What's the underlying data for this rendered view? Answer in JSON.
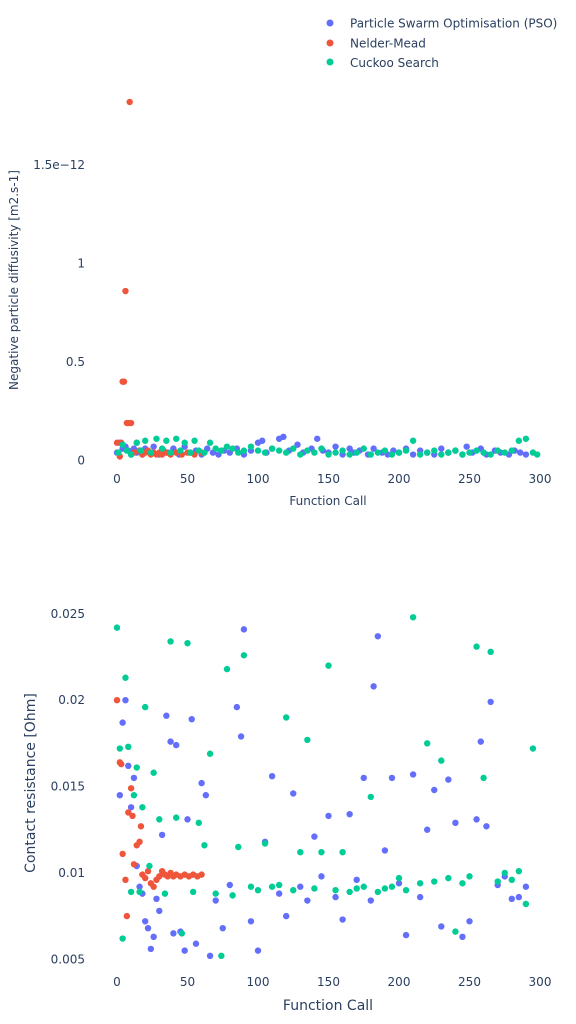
{
  "legend": {
    "placement": "top-right",
    "items": [
      {
        "label": "Particle Swarm Optimisation (PSO)",
        "color": "#636efa"
      },
      {
        "label": "Nelder-Mead",
        "color": "#ef553b"
      },
      {
        "label": "Cuckoo Search",
        "color": "#00cc96"
      }
    ]
  },
  "chart_data": [
    {
      "type": "scatter",
      "xlabel": "Function Call",
      "ylabel": "Negative particle diffusivity [m2.s-1]",
      "xlim": [
        -10,
        305
      ],
      "ylim": [
        -1.5e-13,
        1.83e-12
      ],
      "grid": false,
      "xticks": [
        0,
        50,
        100,
        150,
        200,
        250,
        300
      ],
      "yticks": [
        {
          "value": 0,
          "label": "0"
        },
        {
          "value": 5e-13,
          "label": "0.5"
        },
        {
          "value": 1e-12,
          "label": "1"
        },
        {
          "value": 1.5e-12,
          "label": "1.5e−12"
        }
      ],
      "series": [
        {
          "name": "Particle Swarm Optimisation (PSO)",
          "color": "#636efa",
          "x": [
            0,
            2,
            4,
            6,
            8,
            10,
            12,
            14,
            16,
            18,
            20,
            23,
            26,
            30,
            33,
            36,
            40,
            44,
            48,
            52,
            56,
            60,
            64,
            68,
            72,
            76,
            80,
            85,
            90,
            95,
            100,
            103,
            106,
            110,
            115,
            118,
            122,
            128,
            132,
            138,
            142,
            146,
            150,
            155,
            160,
            165,
            168,
            172,
            178,
            182,
            188,
            192,
            196,
            200,
            205,
            210,
            215,
            220,
            225,
            230,
            235,
            240,
            245,
            248,
            252,
            258,
            262,
            268,
            272,
            278,
            282,
            286,
            290
          ],
          "y": [
            4e-14,
            9e-14,
            6e-14,
            7e-14,
            5e-14,
            3e-14,
            6e-14,
            4e-14,
            5e-14,
            3e-14,
            6e-14,
            4e-14,
            7e-14,
            3e-14,
            5e-14,
            4e-14,
            6e-14,
            3e-14,
            7e-14,
            4e-14,
            5e-14,
            3e-14,
            6e-14,
            4e-14,
            3e-14,
            5e-14,
            4e-14,
            6e-14,
            3e-14,
            5e-14,
            9e-14,
            1e-13,
            4e-14,
            6e-14,
            1.1e-13,
            1.2e-13,
            5e-14,
            8e-14,
            4e-14,
            6e-14,
            1.1e-13,
            5e-14,
            4e-14,
            7e-14,
            3e-14,
            6e-14,
            4e-14,
            5e-14,
            3e-14,
            6e-14,
            4e-14,
            3e-14,
            5e-14,
            4e-14,
            6e-14,
            3e-14,
            5e-14,
            4e-14,
            3e-14,
            6e-14,
            4e-14,
            5e-14,
            3e-14,
            7e-14,
            4e-14,
            6e-14,
            3e-14,
            5e-14,
            4e-14,
            3e-14,
            5e-14,
            4e-14,
            3e-14
          ]
        },
        {
          "name": "Nelder-Mead",
          "color": "#ef553b",
          "x": [
            0,
            2,
            3,
            4,
            5,
            6,
            7,
            8,
            9,
            10,
            12,
            14,
            16,
            18,
            20,
            22,
            24,
            26,
            28,
            30,
            32,
            35,
            38,
            42,
            46,
            50,
            55,
            60
          ],
          "y": [
            9e-14,
            2e-14,
            9e-14,
            4e-13,
            4e-13,
            8.6e-13,
            1.9e-13,
            1.9e-13,
            1.82e-12,
            1.9e-13,
            4e-14,
            9e-14,
            5e-14,
            3e-14,
            4e-14,
            5e-14,
            3e-14,
            4e-14,
            3e-14,
            4e-14,
            3e-14,
            4e-14,
            3e-14,
            4e-14,
            3e-14,
            4e-14,
            3e-14,
            4e-14
          ]
        },
        {
          "name": "Cuckoo Search",
          "color": "#00cc96",
          "x": [
            1,
            4,
            7,
            10,
            14,
            17,
            20,
            24,
            28,
            32,
            35,
            38,
            42,
            45,
            48,
            52,
            55,
            58,
            62,
            66,
            70,
            74,
            78,
            82,
            86,
            90,
            95,
            100,
            105,
            110,
            115,
            120,
            125,
            130,
            135,
            140,
            145,
            150,
            155,
            160,
            165,
            170,
            175,
            180,
            185,
            190,
            195,
            200,
            205,
            210,
            215,
            220,
            225,
            230,
            235,
            240,
            245,
            250,
            255,
            260,
            265,
            270,
            275,
            280,
            285,
            290,
            295,
            298
          ],
          "y": [
            4e-14,
            8e-14,
            5e-14,
            3e-14,
            9e-14,
            5e-14,
            1e-13,
            4e-14,
            1.1e-13,
            6e-14,
            1e-13,
            4e-14,
            1.1e-13,
            5e-14,
            9e-14,
            4e-14,
            1e-13,
            5e-14,
            4e-14,
            9e-14,
            6e-14,
            5e-14,
            7e-14,
            6e-14,
            4e-14,
            5e-14,
            7e-14,
            5e-14,
            4e-14,
            6e-14,
            5e-14,
            4e-14,
            6e-14,
            3e-14,
            5e-14,
            4e-14,
            6e-14,
            3e-14,
            4e-14,
            5e-14,
            3e-14,
            4e-14,
            6e-14,
            3e-14,
            4e-14,
            5e-14,
            3e-14,
            4e-14,
            5e-14,
            1e-13,
            3e-14,
            4e-14,
            5e-14,
            3e-14,
            4e-14,
            5e-14,
            3e-14,
            4e-14,
            5e-14,
            4e-14,
            3e-14,
            5e-14,
            4e-14,
            5e-14,
            1e-13,
            1.1e-13,
            4e-14,
            3e-14
          ]
        }
      ]
    },
    {
      "type": "scatter",
      "xlabel": "Function Call",
      "ylabel": "Contact resistance [Ohm]",
      "xlim": [
        -10,
        305
      ],
      "ylim": [
        0.0038,
        0.0258
      ],
      "grid": false,
      "xticks": [
        0,
        50,
        100,
        150,
        200,
        250,
        300
      ],
      "yticks": [
        {
          "value": 0.005,
          "label": "0.005"
        },
        {
          "value": 0.01,
          "label": "0.01"
        },
        {
          "value": 0.015,
          "label": "0.015"
        },
        {
          "value": 0.02,
          "label": "0.02"
        },
        {
          "value": 0.025,
          "label": "0.025"
        }
      ],
      "series": [
        {
          "name": "Particle Swarm Optimisation (PSO)",
          "color": "#636efa",
          "x": [
            2,
            4,
            6,
            8,
            10,
            12,
            14,
            16,
            18,
            20,
            22,
            24,
            26,
            28,
            30,
            32,
            35,
            38,
            40,
            42,
            45,
            48,
            50,
            53,
            56,
            60,
            63,
            66,
            70,
            75,
            80,
            85,
            88,
            90,
            95,
            100,
            105,
            110,
            115,
            120,
            125,
            130,
            135,
            140,
            145,
            150,
            155,
            160,
            165,
            170,
            175,
            180,
            182,
            185,
            190,
            195,
            200,
            205,
            210,
            215,
            220,
            225,
            230,
            235,
            240,
            245,
            250,
            255,
            258,
            262,
            265,
            270,
            275,
            280,
            285,
            290
          ],
          "y": [
            0.0145,
            0.0187,
            0.02,
            0.0162,
            0.0138,
            0.0155,
            0.0104,
            0.0092,
            0.0088,
            0.0072,
            0.0068,
            0.0056,
            0.0063,
            0.0085,
            0.0078,
            0.0122,
            0.0191,
            0.0176,
            0.0065,
            0.0174,
            0.0066,
            0.0055,
            0.0131,
            0.0189,
            0.0059,
            0.0152,
            0.0145,
            0.0052,
            0.0084,
            0.0068,
            0.0093,
            0.0196,
            0.0179,
            0.0241,
            0.0072,
            0.0055,
            0.0118,
            0.0156,
            0.0088,
            0.0075,
            0.0146,
            0.0092,
            0.0084,
            0.0121,
            0.0098,
            0.0133,
            0.0086,
            0.0073,
            0.0134,
            0.0096,
            0.0155,
            0.0084,
            0.0208,
            0.0237,
            0.0113,
            0.0155,
            0.0094,
            0.0064,
            0.0157,
            0.0086,
            0.0125,
            0.0148,
            0.0069,
            0.0154,
            0.0129,
            0.0063,
            0.0072,
            0.0131,
            0.0176,
            0.0127,
            0.0199,
            0.0093,
            0.0098,
            0.0085,
            0.0086,
            0.0092
          ]
        },
        {
          "name": "Nelder-Mead",
          "color": "#ef553b",
          "x": [
            0,
            2,
            3,
            4,
            6,
            7,
            8,
            10,
            11,
            12,
            14,
            16,
            17,
            18,
            20,
            22,
            24,
            26,
            28,
            30,
            32,
            34,
            36,
            38,
            40,
            42,
            45,
            48,
            51,
            54,
            57,
            60
          ],
          "y": [
            0.02,
            0.0164,
            0.0163,
            0.0111,
            0.0096,
            0.0075,
            0.0135,
            0.0149,
            0.0133,
            0.0105,
            0.0116,
            0.0118,
            0.0127,
            0.0099,
            0.0097,
            0.0101,
            0.0094,
            0.0092,
            0.0096,
            0.0098,
            0.0101,
            0.0099,
            0.0098,
            0.01,
            0.0098,
            0.0099,
            0.0098,
            0.0099,
            0.0098,
            0.0099,
            0.0098,
            0.0099
          ]
        },
        {
          "name": "Cuckoo Search",
          "color": "#00cc96",
          "x": [
            0,
            2,
            4,
            6,
            8,
            10,
            12,
            14,
            16,
            18,
            20,
            23,
            26,
            30,
            34,
            38,
            42,
            46,
            50,
            54,
            58,
            62,
            66,
            70,
            74,
            78,
            82,
            86,
            90,
            95,
            100,
            105,
            110,
            115,
            120,
            125,
            130,
            135,
            140,
            145,
            150,
            155,
            160,
            165,
            170,
            175,
            180,
            185,
            190,
            195,
            200,
            205,
            210,
            215,
            220,
            225,
            230,
            235,
            240,
            245,
            250,
            255,
            260,
            265,
            270,
            275,
            280,
            285,
            290,
            295
          ],
          "y": [
            0.0242,
            0.0172,
            0.0062,
            0.0213,
            0.0173,
            0.0089,
            0.0145,
            0.0161,
            0.0089,
            0.0138,
            0.0196,
            0.0104,
            0.0158,
            0.0131,
            0.0088,
            0.0234,
            0.0132,
            0.0065,
            0.0233,
            0.0089,
            0.0129,
            0.0116,
            0.0169,
            0.0088,
            0.0052,
            0.0218,
            0.0087,
            0.0115,
            0.0226,
            0.0092,
            0.009,
            0.0117,
            0.0092,
            0.0093,
            0.019,
            0.009,
            0.0112,
            0.0177,
            0.0091,
            0.0112,
            0.022,
            0.009,
            0.0112,
            0.0089,
            0.0091,
            0.0092,
            0.0144,
            0.0089,
            0.0091,
            0.0092,
            0.0097,
            0.009,
            0.0248,
            0.0094,
            0.0175,
            0.0095,
            0.0165,
            0.0097,
            0.0066,
            0.0094,
            0.0098,
            0.0231,
            0.0155,
            0.0228,
            0.0095,
            0.01,
            0.0096,
            0.0101,
            0.0082,
            0.0172
          ]
        }
      ]
    }
  ]
}
